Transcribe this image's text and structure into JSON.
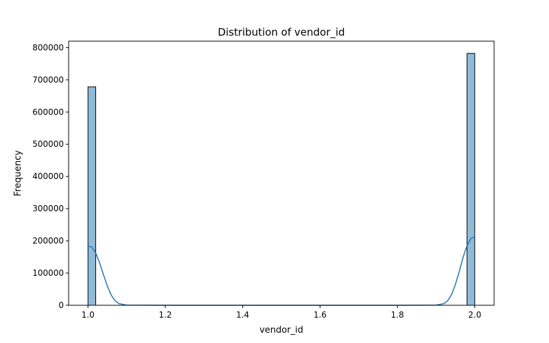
{
  "chart_data": {
    "type": "bar",
    "title": "Distribution of vendor_id",
    "xlabel": "vendor_id",
    "ylabel": "Frequency",
    "xlim": [
      0.95,
      2.05
    ],
    "ylim": [
      0,
      820000
    ],
    "x_ticks": [
      1.0,
      1.2,
      1.4,
      1.6,
      1.8,
      2.0
    ],
    "x_tick_labels": [
      "1.0",
      "1.2",
      "1.4",
      "1.6",
      "1.8",
      "2.0"
    ],
    "y_ticks": [
      0,
      100000,
      200000,
      300000,
      400000,
      500000,
      600000,
      700000,
      800000
    ],
    "y_tick_labels": [
      "0",
      "100000",
      "200000",
      "300000",
      "400000",
      "500000",
      "600000",
      "700000",
      "800000"
    ],
    "bins": [
      {
        "x0": 1.0,
        "x1": 1.02,
        "value": 678000
      },
      {
        "x0": 1.98,
        "x1": 2.0,
        "value": 782000
      }
    ],
    "kde": {
      "x": [
        1.0,
        1.01,
        1.02,
        1.03,
        1.04,
        1.05,
        1.06,
        1.07,
        1.08,
        1.1,
        1.2,
        1.4,
        1.6,
        1.8,
        1.9,
        1.92,
        1.93,
        1.94,
        1.95,
        1.96,
        1.97,
        1.98,
        1.99,
        2.0
      ],
      "y": [
        185000,
        180000,
        163000,
        132000,
        95000,
        60000,
        32000,
        14000,
        5000,
        500,
        0,
        0,
        0,
        0,
        500,
        5000,
        14000,
        33000,
        65000,
        105000,
        150000,
        185000,
        207000,
        213000
      ]
    },
    "colors": {
      "bar_fill": "#1f77b4",
      "bar_fill_opacity": "0.5",
      "bar_edge": "#000000",
      "kde_line": "#1f77b4"
    },
    "grid": false
  }
}
